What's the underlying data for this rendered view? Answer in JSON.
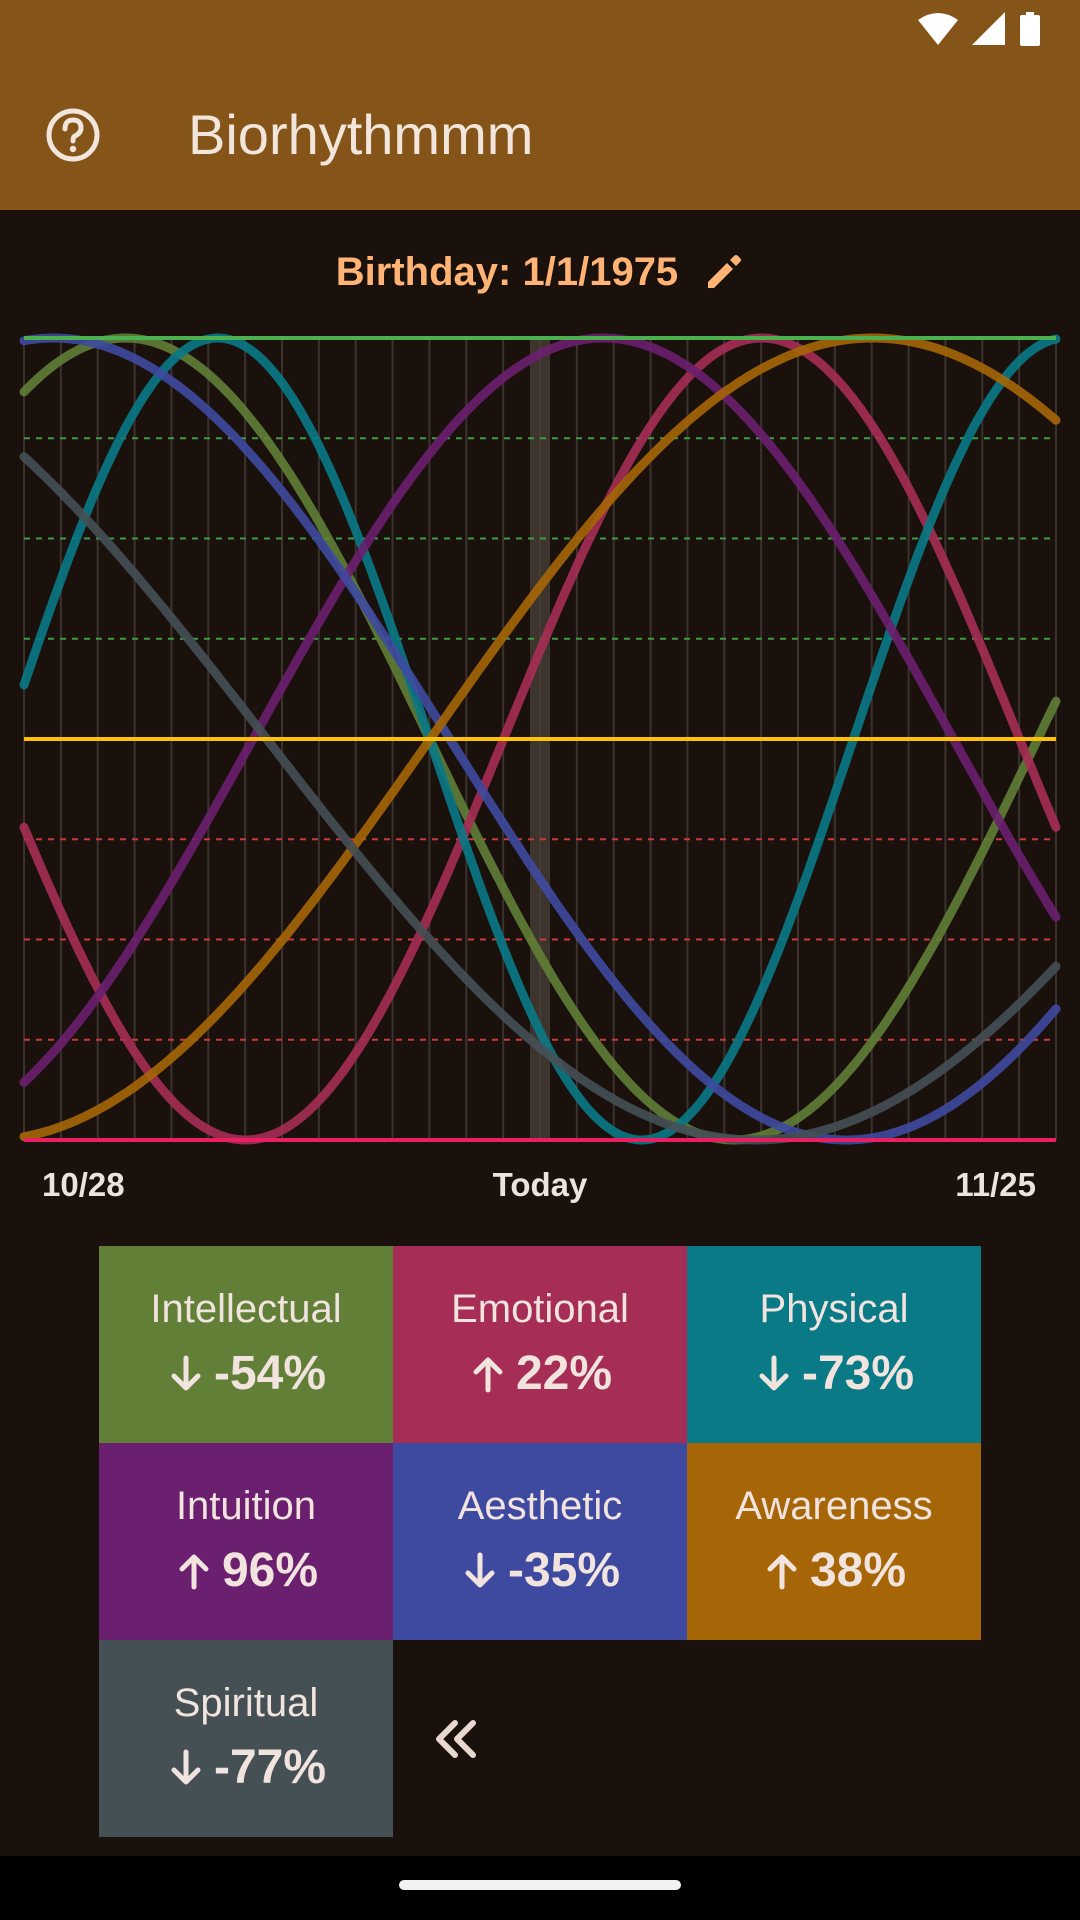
{
  "app": {
    "title": "Biorhythmmm"
  },
  "birthday": {
    "label": "Birthday: 1/1/1975"
  },
  "dates": {
    "start": "10/28",
    "today": "Today",
    "end": "11/25"
  },
  "colors": {
    "app_bar": "#855418",
    "background": "#1a110d",
    "top_line": "#4caf50",
    "zero_line": "#ffc107",
    "bottom_line": "#e91e63",
    "birthday_text": "#ffb374"
  },
  "chart_data": {
    "type": "line",
    "x_start_day": -14,
    "x_end_day": 14,
    "ylim": [
      -1,
      1
    ],
    "series": [
      {
        "name": "Intellectual",
        "period": 33,
        "today_value": -0.54,
        "rising": false,
        "color": "#617f36"
      },
      {
        "name": "Emotional",
        "period": 28,
        "today_value": 0.22,
        "rising": true,
        "color": "#a62d55"
      },
      {
        "name": "Physical",
        "period": 23,
        "today_value": -0.73,
        "rising": false,
        "color": "#097a86"
      },
      {
        "name": "Intuition",
        "period": 38,
        "today_value": 0.96,
        "rising": true,
        "color": "#6b1f6f"
      },
      {
        "name": "Aesthetic",
        "period": 43,
        "today_value": -0.35,
        "rising": false,
        "color": "#3e4aa0"
      },
      {
        "name": "Awareness",
        "period": 48,
        "today_value": 0.38,
        "rising": true,
        "color": "#a66607"
      },
      {
        "name": "Spiritual",
        "period": 53,
        "today_value": -0.77,
        "rising": false,
        "color": "#455055"
      }
    ]
  },
  "legend": [
    {
      "name": "Intellectual",
      "value": "-54%",
      "direction": "down",
      "color": "#617f36"
    },
    {
      "name": "Emotional",
      "value": "22%",
      "direction": "up",
      "color": "#a62d55"
    },
    {
      "name": "Physical",
      "value": "-73%",
      "direction": "down",
      "color": "#097a86"
    },
    {
      "name": "Intuition",
      "value": "96%",
      "direction": "up",
      "color": "#6b1f6f"
    },
    {
      "name": "Aesthetic",
      "value": "-35%",
      "direction": "down",
      "color": "#3e4aa0"
    },
    {
      "name": "Awareness",
      "value": "38%",
      "direction": "up",
      "color": "#a66607"
    },
    {
      "name": "Spiritual",
      "value": "-77%",
      "direction": "down",
      "color": "#455055"
    }
  ],
  "icons": {
    "help": "help-circle-icon",
    "edit": "pencil-icon",
    "collapse": "double-chevron-left-icon",
    "wifi": "wifi-icon",
    "signal": "signal-icon",
    "battery": "battery-icon"
  }
}
